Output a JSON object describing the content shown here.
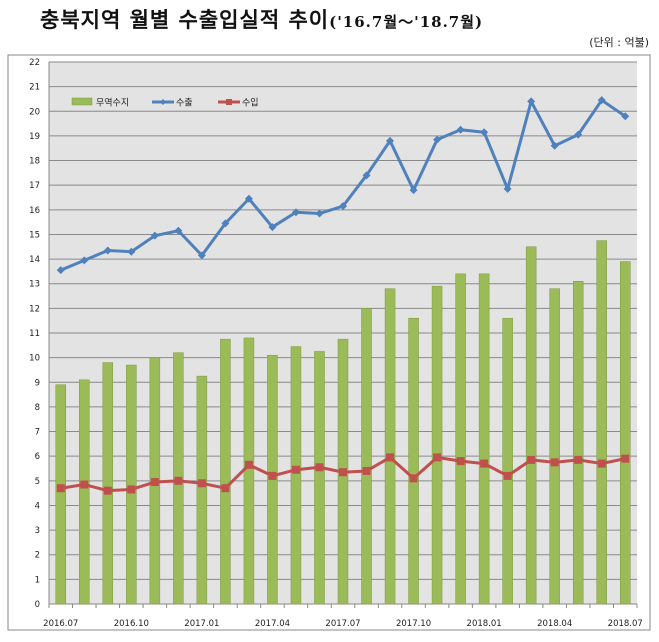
{
  "chart_data": {
    "type": "bar+line",
    "title": "충북지역 월별 수출입실적 추이",
    "title_suffix": "('16.7월～'18.7월)",
    "unit": "(단위 : 억불)",
    "ylim": [
      0,
      22
    ],
    "yticks": [
      0,
      1,
      2,
      3,
      4,
      5,
      6,
      7,
      8,
      9,
      10,
      11,
      12,
      13,
      14,
      15,
      16,
      17,
      18,
      19,
      20,
      21,
      22
    ],
    "grid": true,
    "legend_position": "top-left",
    "categories": [
      "2016.07",
      "2016.08",
      "2016.09",
      "2016.10",
      "2016.11",
      "2016.12",
      "2017.01",
      "2017.02",
      "2017.03",
      "2017.04",
      "2017.05",
      "2017.06",
      "2017.07",
      "2017.08",
      "2017.09",
      "2017.10",
      "2017.11",
      "2017.12",
      "2018.01",
      "2018.02",
      "2018.03",
      "2018.04",
      "2018.05",
      "2018.06",
      "2018.07"
    ],
    "xtick_labels": [
      "2016.07",
      "2016.10",
      "2017.01",
      "2017.04",
      "2017.07",
      "2017.10",
      "2018.01",
      "2018.04",
      "2018.07"
    ],
    "series": [
      {
        "name": "무역수지",
        "type": "bar",
        "color": "#9BBB59",
        "values": [
          8.9,
          9.1,
          9.8,
          9.7,
          10.0,
          10.2,
          9.25,
          10.75,
          10.8,
          10.1,
          10.45,
          10.25,
          10.75,
          12.0,
          12.8,
          11.6,
          12.9,
          13.4,
          13.4,
          11.6,
          14.5,
          12.8,
          13.1,
          14.75,
          13.9
        ]
      },
      {
        "name": "수출",
        "type": "line",
        "color": "#4F81BD",
        "values": [
          13.55,
          13.95,
          14.35,
          14.3,
          14.95,
          15.15,
          14.15,
          15.45,
          16.45,
          15.3,
          15.9,
          15.85,
          16.15,
          17.4,
          18.8,
          16.8,
          18.85,
          19.25,
          19.15,
          16.85,
          20.4,
          18.6,
          19.05,
          20.45,
          19.8
        ]
      },
      {
        "name": "수입",
        "type": "line",
        "color": "#C0504D",
        "values": [
          4.7,
          4.85,
          4.6,
          4.65,
          4.95,
          5.0,
          4.9,
          4.7,
          5.65,
          5.2,
          5.45,
          5.55,
          5.35,
          5.4,
          5.95,
          5.1,
          5.95,
          5.8,
          5.7,
          5.2,
          5.85,
          5.75,
          5.85,
          5.7,
          5.9
        ]
      }
    ]
  }
}
